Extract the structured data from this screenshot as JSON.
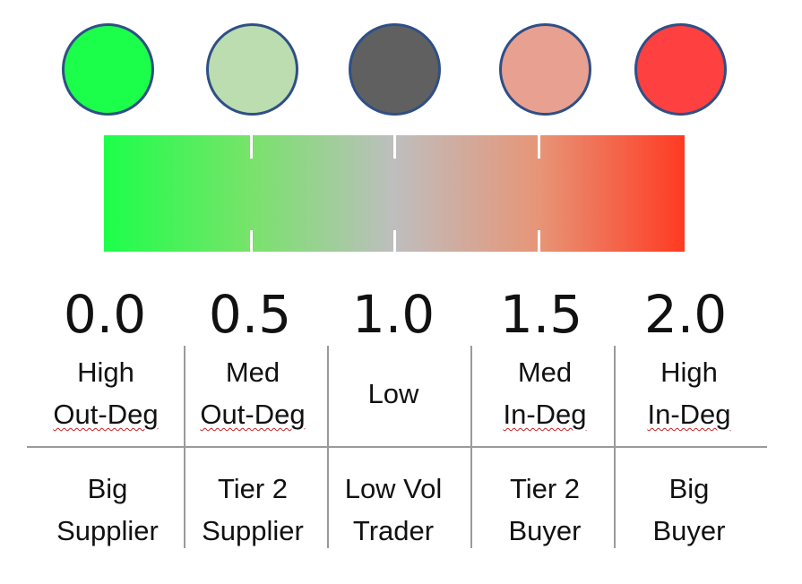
{
  "legend": {
    "circles": [
      {
        "name": "high-out-deg",
        "color": "#1CFF4A"
      },
      {
        "name": "med-out-deg",
        "color": "#BBDDAF"
      },
      {
        "name": "low",
        "color": "#606060"
      },
      {
        "name": "med-in-deg",
        "color": "#E8A090"
      },
      {
        "name": "high-in-deg",
        "color": "#FF4040"
      }
    ],
    "gradient": {
      "colors": [
        "#1CFF4A",
        "#77E36A",
        "#BEBEBE",
        "#E79577",
        "#FF3A22"
      ]
    },
    "ticks": [
      "0.0",
      "0.5",
      "1.0",
      "1.5",
      "2.0"
    ]
  },
  "table": {
    "degree_row": [
      {
        "line1": "High",
        "line2": "Out-Deg"
      },
      {
        "line1": "Med",
        "line2": "Out-Deg"
      },
      {
        "line1": "Low",
        "line2": ""
      },
      {
        "line1": "Med",
        "line2": "In-Deg"
      },
      {
        "line1": "High",
        "line2": "In-Deg"
      }
    ],
    "role_row": [
      {
        "line1": "Big",
        "line2": "Supplier"
      },
      {
        "line1": "Tier 2",
        "line2": "Supplier"
      },
      {
        "line1": "Low Vol",
        "line2": "Trader"
      },
      {
        "line1": "Tier 2",
        "line2": "Buyer"
      },
      {
        "line1": "Big",
        "line2": "Buyer"
      }
    ]
  }
}
